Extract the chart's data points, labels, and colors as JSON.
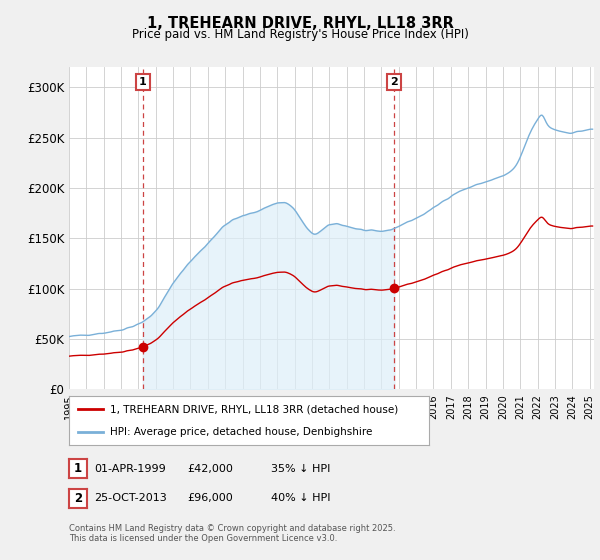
{
  "title": "1, TREHEARN DRIVE, RHYL, LL18 3RR",
  "subtitle": "Price paid vs. HM Land Registry's House Price Index (HPI)",
  "ylim": [
    0,
    320000
  ],
  "yticks": [
    0,
    50000,
    100000,
    150000,
    200000,
    250000,
    300000
  ],
  "ytick_labels": [
    "£0",
    "£50K",
    "£100K",
    "£150K",
    "£200K",
    "£250K",
    "£300K"
  ],
  "legend_line1": "1, TREHEARN DRIVE, RHYL, LL18 3RR (detached house)",
  "legend_line2": "HPI: Average price, detached house, Denbighshire",
  "sale1_date": "01-APR-1999",
  "sale1_price": "£42,000",
  "sale1_pct": "35% ↓ HPI",
  "sale2_date": "25-OCT-2013",
  "sale2_price": "£96,000",
  "sale2_pct": "40% ↓ HPI",
  "footer": "Contains HM Land Registry data © Crown copyright and database right 2025.\nThis data is licensed under the Open Government Licence v3.0.",
  "hpi_color": "#7ab0d8",
  "hpi_fill_color": "#ddeef8",
  "sale_color": "#cc0000",
  "vline_color": "#cc4444",
  "background_color": "#f0f0f0",
  "plot_bg_color": "#ffffff",
  "grid_color": "#cccccc"
}
